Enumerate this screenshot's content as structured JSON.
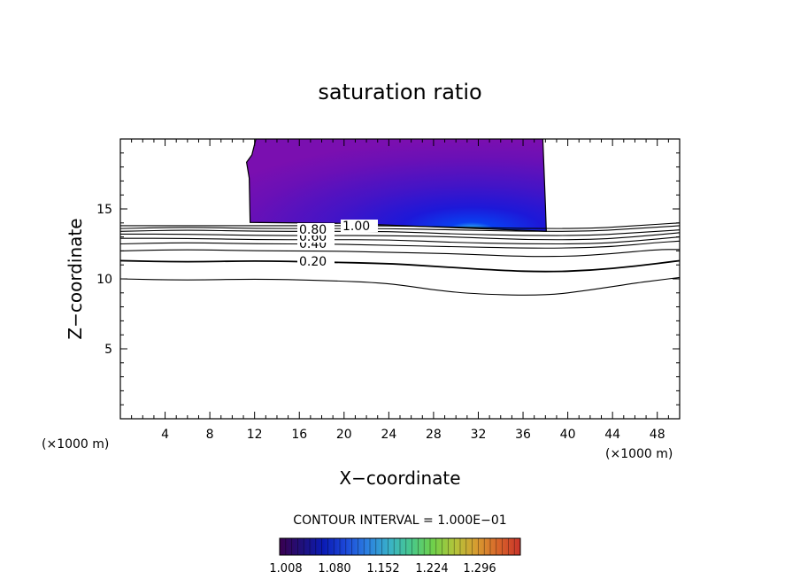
{
  "chart_data": {
    "type": "contour",
    "title": "saturation ratio",
    "xlabel": "X−coordinate",
    "ylabel": "Z−coordinate",
    "x_unit_label": "(×1000 m)",
    "y_unit_label": "(×1000 m)",
    "xlim": [
      0,
      50
    ],
    "ylim": [
      0,
      20
    ],
    "x_ticks": [
      4,
      8,
      12,
      16,
      20,
      24,
      28,
      32,
      36,
      40,
      44,
      48
    ],
    "x_tick_labels": [
      "4",
      "8",
      "12",
      "16",
      "20",
      "24",
      "28",
      "32",
      "36",
      "40",
      "44",
      "48"
    ],
    "y_ticks": [
      5,
      10,
      15
    ],
    "y_tick_labels": [
      "5",
      "10",
      "15"
    ],
    "contour_interval_text": "CONTOUR INTERVAL = 1.000E−01",
    "contour_line_labels": [
      "0.20",
      "0.40",
      "0.60",
      "0.80",
      "1.00"
    ],
    "contour_lines": [
      {
        "level": 0.1,
        "points": [
          [
            0,
            10.0
          ],
          [
            6,
            9.9
          ],
          [
            12,
            10.0
          ],
          [
            18,
            9.9
          ],
          [
            24,
            9.7
          ],
          [
            28,
            9.2
          ],
          [
            32,
            8.9
          ],
          [
            38,
            8.8
          ],
          [
            42,
            9.2
          ],
          [
            46,
            9.7
          ],
          [
            48,
            9.9
          ],
          [
            50,
            10.1
          ]
        ]
      },
      {
        "level": 0.2,
        "points": [
          [
            0,
            11.3
          ],
          [
            6,
            11.2
          ],
          [
            12,
            11.3
          ],
          [
            18,
            11.2
          ],
          [
            24,
            11.1
          ],
          [
            28,
            10.9
          ],
          [
            34,
            10.6
          ],
          [
            38,
            10.5
          ],
          [
            42,
            10.6
          ],
          [
            46,
            10.9
          ],
          [
            50,
            11.3
          ]
        ]
      },
      {
        "level": 0.3,
        "points": [
          [
            0,
            12.0
          ],
          [
            6,
            12.1
          ],
          [
            12,
            12.0
          ],
          [
            18,
            12.0
          ],
          [
            24,
            11.9
          ],
          [
            30,
            11.8
          ],
          [
            36,
            11.6
          ],
          [
            40,
            11.6
          ],
          [
            44,
            11.8
          ],
          [
            48,
            12.1
          ],
          [
            50,
            12.1
          ]
        ]
      },
      {
        "level": 0.4,
        "points": [
          [
            0,
            12.5
          ],
          [
            6,
            12.6
          ],
          [
            12,
            12.5
          ],
          [
            18,
            12.5
          ],
          [
            24,
            12.4
          ],
          [
            30,
            12.3
          ],
          [
            36,
            12.2
          ],
          [
            40,
            12.2
          ],
          [
            44,
            12.3
          ],
          [
            48,
            12.6
          ],
          [
            50,
            12.7
          ]
        ]
      },
      {
        "level": 0.5,
        "points": [
          [
            0,
            12.9
          ],
          [
            6,
            12.9
          ],
          [
            12,
            12.8
          ],
          [
            18,
            12.8
          ],
          [
            24,
            12.8
          ],
          [
            30,
            12.6
          ],
          [
            36,
            12.5
          ],
          [
            42,
            12.5
          ],
          [
            46,
            12.7
          ],
          [
            50,
            13.0
          ]
        ]
      },
      {
        "level": 0.6,
        "points": [
          [
            0,
            13.2
          ],
          [
            6,
            13.2
          ],
          [
            12,
            13.1
          ],
          [
            18,
            13.1
          ],
          [
            24,
            13.1
          ],
          [
            30,
            13.0
          ],
          [
            36,
            12.8
          ],
          [
            42,
            12.8
          ],
          [
            46,
            13.0
          ],
          [
            50,
            13.3
          ]
        ]
      },
      {
        "level": 0.7,
        "points": [
          [
            0,
            13.4
          ],
          [
            6,
            13.5
          ],
          [
            12,
            13.4
          ],
          [
            18,
            13.4
          ],
          [
            24,
            13.4
          ],
          [
            30,
            13.2
          ],
          [
            36,
            13.1
          ],
          [
            42,
            13.1
          ],
          [
            46,
            13.3
          ],
          [
            50,
            13.5
          ]
        ]
      },
      {
        "level": 0.8,
        "points": [
          [
            0,
            13.6
          ],
          [
            6,
            13.7
          ],
          [
            12,
            13.6
          ],
          [
            18,
            13.6
          ],
          [
            24,
            13.6
          ],
          [
            30,
            13.5
          ],
          [
            36,
            13.4
          ],
          [
            42,
            13.4
          ],
          [
            46,
            13.6
          ],
          [
            50,
            13.8
          ]
        ]
      },
      {
        "level": 0.9,
        "points": [
          [
            0,
            13.8
          ],
          [
            6,
            13.8
          ],
          [
            12,
            13.8
          ],
          [
            18,
            13.8
          ],
          [
            24,
            13.8
          ],
          [
            30,
            13.7
          ],
          [
            36,
            13.6
          ],
          [
            42,
            13.6
          ],
          [
            46,
            13.8
          ],
          [
            50,
            14.0
          ]
        ]
      }
    ],
    "filled_region": {
      "x_range": [
        11.6,
        38.0
      ],
      "z_range": [
        13.4,
        20.0
      ],
      "min_value": 1.008,
      "max_value": 1.3
    },
    "colorbar": {
      "ticks": [
        1.008,
        1.08,
        1.152,
        1.224,
        1.296
      ],
      "tick_labels": [
        "1.008",
        "1.080",
        "1.152",
        "1.224",
        "1.296"
      ],
      "colors": [
        "#3a0050",
        "#20107a",
        "#0a1bb4",
        "#1c48d8",
        "#2b7fe0",
        "#39b1c8",
        "#48c88c",
        "#6fd04a",
        "#b3c43a",
        "#d79b30",
        "#d8652a",
        "#c8332a"
      ]
    },
    "grid": false,
    "legend": "bottom"
  }
}
